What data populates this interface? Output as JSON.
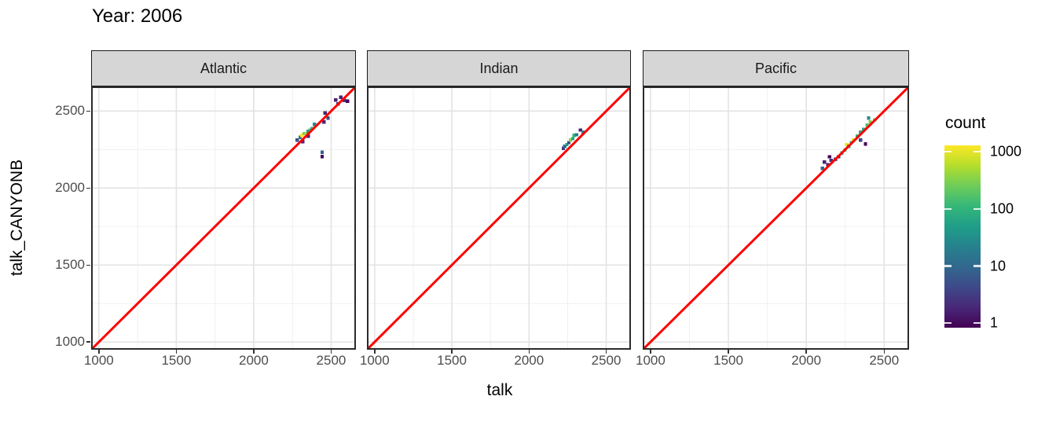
{
  "title": "Year: 2006",
  "chart_data": {
    "type": "heatmap",
    "subtype": "faceted-bin2d-scatter",
    "title": "Year: 2006",
    "xlabel": "talk",
    "ylabel": "talk_CANYONB",
    "xlim": [
      950,
      2660
    ],
    "ylim": [
      950,
      2660
    ],
    "x_ticks": [
      1000,
      1500,
      2000,
      2500
    ],
    "y_ticks": [
      1000,
      1500,
      2000,
      2500
    ],
    "x_minor_ticks": [
      1250,
      1750,
      2250
    ],
    "y_minor_ticks": [
      1250,
      1750,
      2250
    ],
    "grid": true,
    "bin_size": 22,
    "reference_line": {
      "equation": "y = x",
      "color": "#FF0000"
    },
    "legend": {
      "title": "count",
      "ticks": [
        1000,
        100,
        10,
        1
      ],
      "scale": "log10",
      "position": "right"
    },
    "facets": [
      {
        "label": "Atlantic",
        "bins": [
          [
            2280,
            2312,
            6
          ],
          [
            2300,
            2329,
            15
          ],
          [
            2317,
            2302,
            2
          ],
          [
            2312,
            2342,
            1000
          ],
          [
            2326,
            2354,
            250
          ],
          [
            2340,
            2352,
            500
          ],
          [
            2352,
            2367,
            40
          ],
          [
            2351,
            2337,
            2
          ],
          [
            2364,
            2376,
            120
          ],
          [
            2376,
            2387,
            80
          ],
          [
            2393,
            2413,
            30
          ],
          [
            2453,
            2429,
            2
          ],
          [
            2480,
            2454,
            4
          ],
          [
            2461,
            2488,
            2
          ],
          [
            2529,
            2572,
            2
          ],
          [
            2545,
            2547,
            4
          ],
          [
            2562,
            2589,
            2
          ],
          [
            2605,
            2564,
            1
          ],
          [
            2585,
            2570,
            3
          ],
          [
            2442,
            2233,
            8
          ],
          [
            2442,
            2205,
            1
          ]
        ]
      },
      {
        "label": "Indian",
        "bins": [
          [
            2222,
            2258,
            3
          ],
          [
            2232,
            2270,
            12
          ],
          [
            2245,
            2282,
            40
          ],
          [
            2258,
            2295,
            5
          ],
          [
            2268,
            2312,
            300
          ],
          [
            2283,
            2321,
            60
          ],
          [
            2292,
            2343,
            100
          ],
          [
            2308,
            2346,
            20
          ],
          [
            2333,
            2377,
            2
          ],
          [
            2350,
            2362,
            25
          ]
        ]
      },
      {
        "label": "Pacific",
        "bins": [
          [
            2104,
            2127,
            10
          ],
          [
            2116,
            2169,
            2
          ],
          [
            2138,
            2152,
            2
          ],
          [
            2149,
            2203,
            1
          ],
          [
            2160,
            2180,
            3
          ],
          [
            2188,
            2186,
            4
          ],
          [
            2208,
            2203,
            2
          ],
          [
            2229,
            2228,
            60
          ],
          [
            2249,
            2248,
            120
          ],
          [
            2260,
            2282,
            800
          ],
          [
            2272,
            2270,
            60
          ],
          [
            2289,
            2295,
            80
          ],
          [
            2304,
            2312,
            700
          ],
          [
            2328,
            2337,
            90
          ],
          [
            2348,
            2362,
            70
          ],
          [
            2349,
            2312,
            4
          ],
          [
            2368,
            2382,
            60
          ],
          [
            2380,
            2287,
            1
          ],
          [
            2390,
            2409,
            150
          ],
          [
            2400,
            2454,
            30
          ],
          [
            2410,
            2429,
            250
          ],
          [
            2440,
            2443,
            200
          ]
        ]
      }
    ],
    "colors": {
      "viridis": [
        "#440154",
        "#482878",
        "#3e4989",
        "#31688e",
        "#26828e",
        "#1f9e89",
        "#35b779",
        "#6dcd59",
        "#b4de2c",
        "#fde725"
      ],
      "grid_major": "#e3e3e3",
      "grid_minor": "#f0f0f0",
      "panel_border": "#2b2b2b",
      "strip_bg": "#d6d6d6",
      "tick_text": "#4d4d4d",
      "ref_line": "#FF0000",
      "panel_bg": "#ffffff"
    }
  }
}
